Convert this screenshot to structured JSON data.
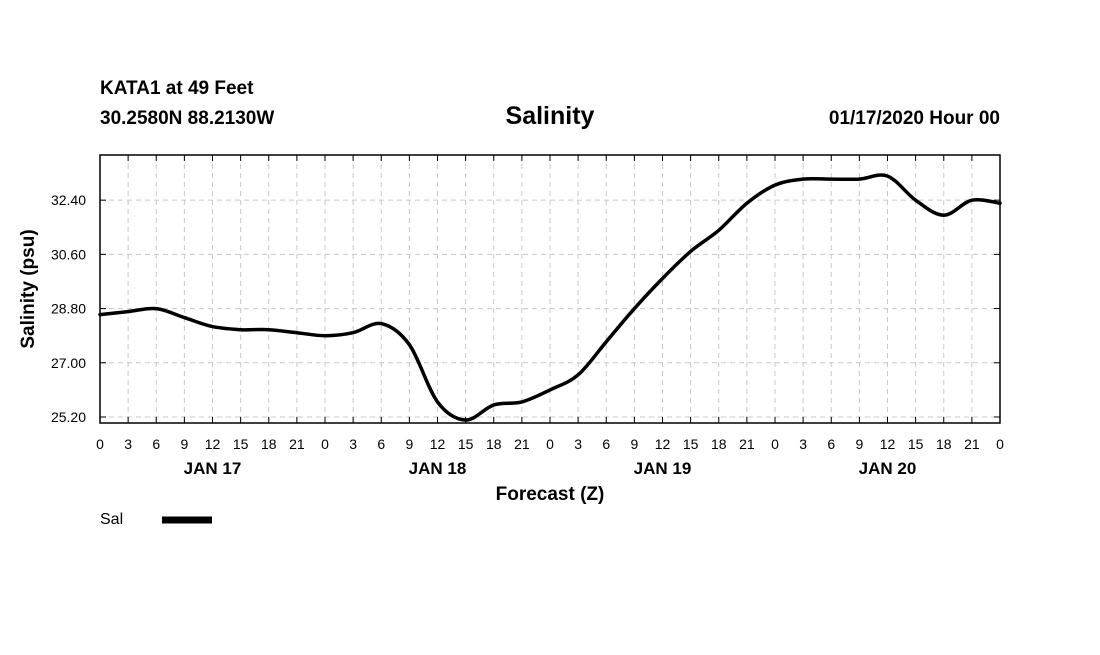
{
  "header": {
    "station": "KATA1 at 49 Feet",
    "coords": "30.2580N 88.2130W",
    "datetime": "01/17/2020 Hour 00"
  },
  "chart_data": {
    "type": "line",
    "title": "Salinity",
    "xlabel": "Forecast (Z)",
    "ylabel": "Salinity (psu)",
    "x_range_hours": [
      0,
      96
    ],
    "ylim": [
      25.0,
      33.9
    ],
    "y_ticks": [
      "25.20",
      "27.00",
      "28.80",
      "30.60",
      "32.40"
    ],
    "y_tick_values": [
      25.2,
      27.0,
      28.8,
      30.6,
      32.4
    ],
    "x_tick_labels": [
      "0",
      "3",
      "6",
      "9",
      "12",
      "15",
      "18",
      "21",
      "0",
      "3",
      "6",
      "9",
      "12",
      "15",
      "18",
      "21",
      "0",
      "3",
      "6",
      "9",
      "12",
      "15",
      "18",
      "21",
      "0",
      "3",
      "6",
      "9",
      "12",
      "15",
      "18",
      "21",
      "0"
    ],
    "day_labels": [
      {
        "label": "JAN 17",
        "hour": 12
      },
      {
        "label": "JAN 18",
        "hour": 36
      },
      {
        "label": "JAN 19",
        "hour": 60
      },
      {
        "label": "JAN 20",
        "hour": 84
      }
    ],
    "grid": true,
    "series": [
      {
        "name": "Sal",
        "color": "#000000",
        "x_hours": [
          0,
          3,
          6,
          9,
          12,
          15,
          18,
          21,
          24,
          27,
          30,
          33,
          36,
          39,
          42,
          45,
          48,
          51,
          54,
          57,
          60,
          63,
          66,
          69,
          72,
          75,
          78,
          81,
          84,
          87,
          90,
          93,
          96
        ],
        "values": [
          28.6,
          28.7,
          28.8,
          28.5,
          28.2,
          28.1,
          28.1,
          28.0,
          27.9,
          28.0,
          28.3,
          27.6,
          25.7,
          25.1,
          25.6,
          25.7,
          26.1,
          26.6,
          27.7,
          28.8,
          29.8,
          30.7,
          31.4,
          32.3,
          32.9,
          33.1,
          33.1,
          33.1,
          33.2,
          32.4,
          31.9,
          32.4,
          32.3
        ]
      }
    ]
  },
  "legend": {
    "label": "Sal"
  }
}
